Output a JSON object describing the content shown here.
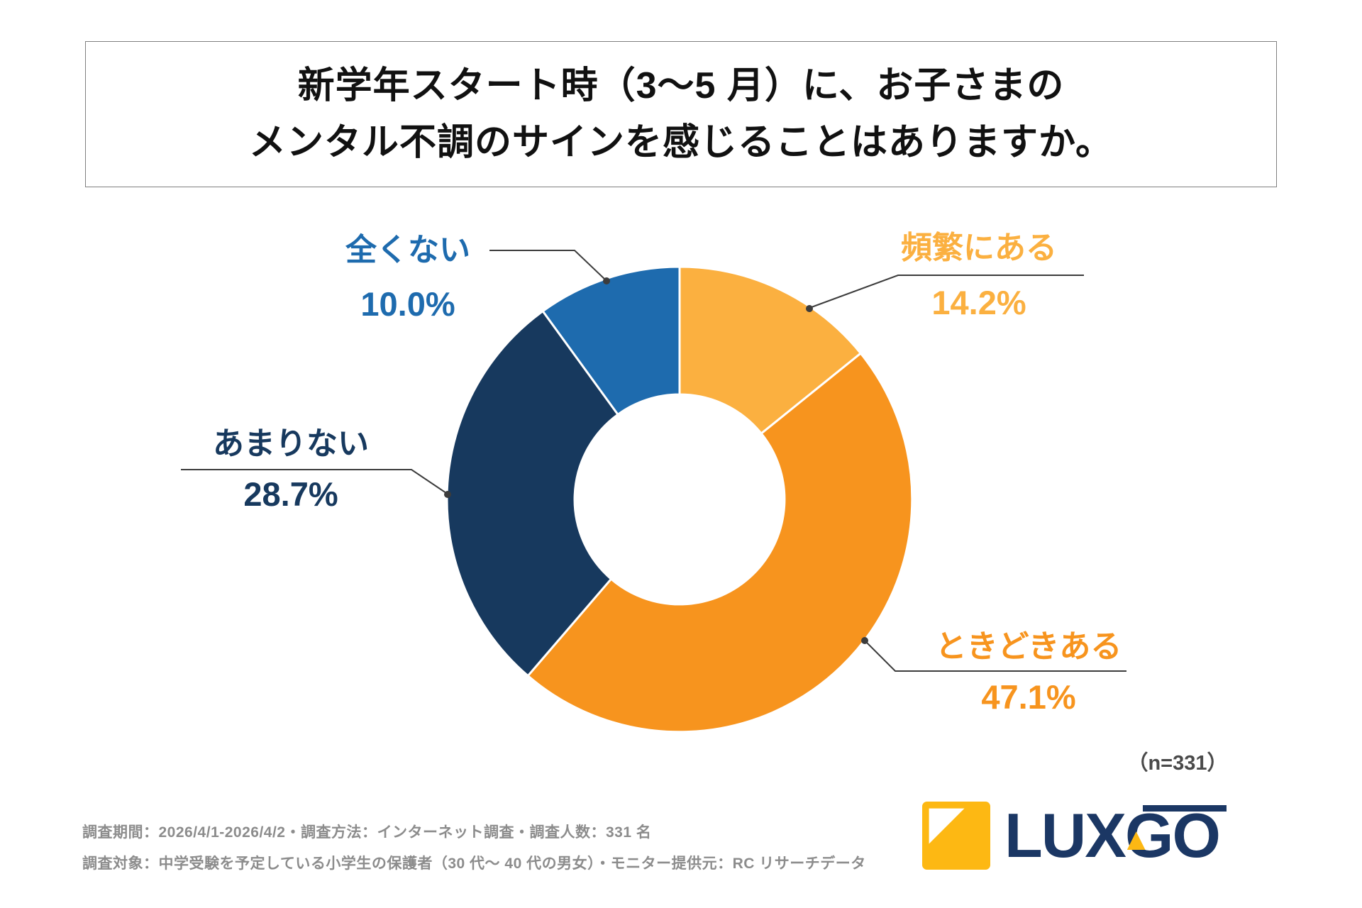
{
  "title": {
    "line1": "新学年スタート時（3〜5 月）に、お子さまの",
    "line2": "メンタル不調のサインを感じることはありますか。"
  },
  "chart_data": {
    "type": "pie",
    "donut": true,
    "title": "新学年スタート時（3〜5 月）に、お子さまのメンタル不調のサインを感じることはありますか。",
    "labels": [
      "頻繁にある",
      "ときどきある",
      "あまりない",
      "全くない"
    ],
    "values": [
      14.2,
      47.1,
      28.7,
      10.0
    ],
    "percent_labels": [
      "14.2%",
      "47.1%",
      "28.7%",
      "10.0%"
    ],
    "colors": [
      "#FBB040",
      "#F7941E",
      "#17395E",
      "#1E6BAE"
    ],
    "start_angle_deg": 0,
    "direction": "clockwise",
    "legend_position": "callouts",
    "n_label": "（n=331）",
    "callouts": [
      {
        "label": "全くない",
        "pct": "10.0%",
        "color": "#1E6BAE"
      },
      {
        "label": "頻繁にある",
        "pct": "14.2%",
        "color": "#FBB040"
      },
      {
        "label": "あまりない",
        "pct": "28.7%",
        "color": "#17395E"
      },
      {
        "label": "ときどきある",
        "pct": "47.1%",
        "color": "#F7941E"
      }
    ]
  },
  "footer": {
    "line1": "調査期間：2026/4/1-2026/4/2・調査方法：インターネット調査・調査人数：331 名",
    "line2": "調査対象：中学受験を予定している小学生の保護者（30 代〜 40 代の男女）・モニター提供元：RC リサーチデータ"
  },
  "logo": {
    "text": "LUXGO"
  }
}
